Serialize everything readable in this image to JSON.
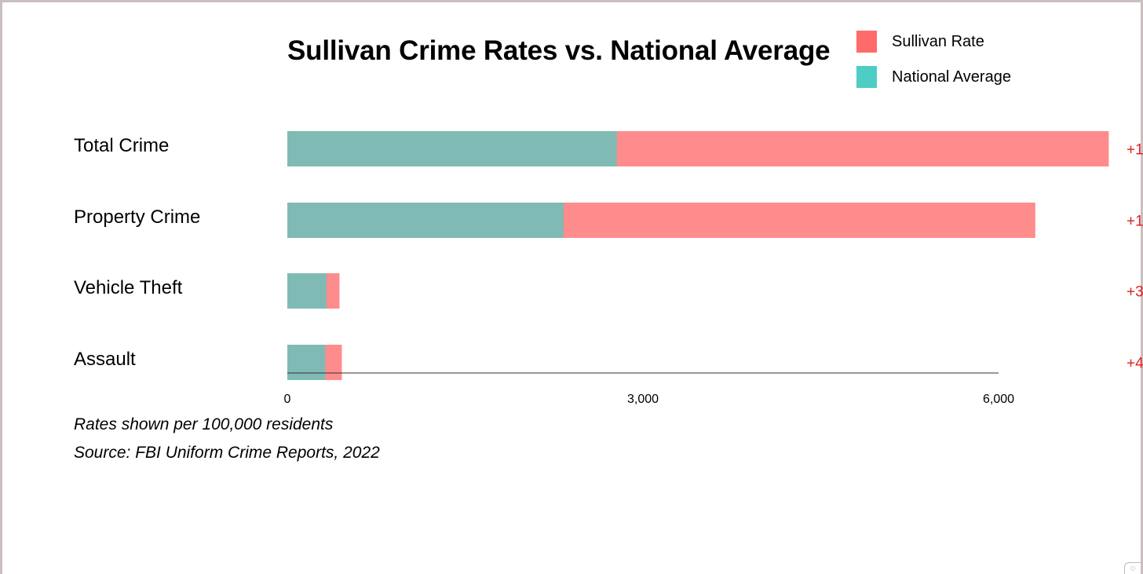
{
  "chart_data": {
    "type": "bar",
    "title": "Sullivan Crime Rates vs. National Average",
    "categories": [
      "Total Crime",
      "Property Crime",
      "Vehicle Theft",
      "Assault"
    ],
    "series": [
      {
        "name": "National Average",
        "values": [
          2780,
          2330,
          330,
          320
        ],
        "color": "#4ecdc4"
      },
      {
        "name": "Sullivan Rate",
        "values": [
          6930,
          6310,
          440,
          460
        ],
        "color": "#ff6b6b"
      }
    ],
    "diff_labels": [
      "+1",
      "+1",
      "+3",
      "+4"
    ],
    "diff_label_color": "#e02020",
    "xlim": [
      0,
      6000
    ],
    "xticks": [
      0,
      3000,
      6000
    ],
    "xtick_labels": [
      "0",
      "3,000",
      "6,000"
    ],
    "xlabel": "",
    "ylabel": "",
    "grid": false,
    "legend_position": "top-right",
    "notes": [
      "Rates shown per 100,000 residents",
      "Source: FBI Uniform Crime Reports, 2022"
    ]
  }
}
